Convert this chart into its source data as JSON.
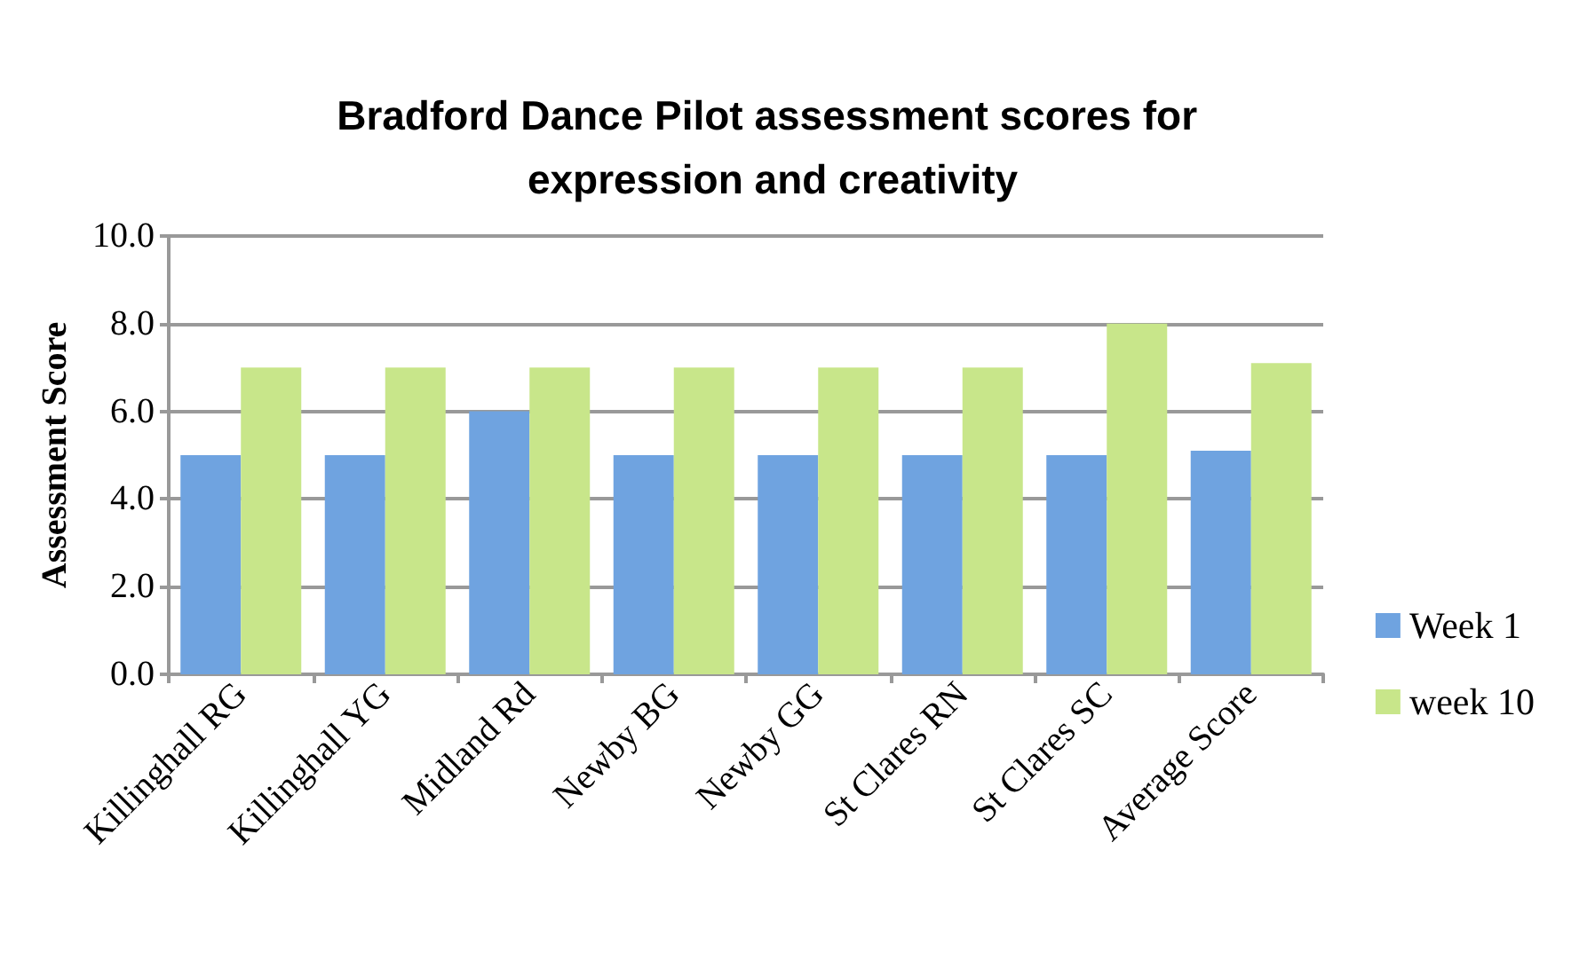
{
  "chart_data": {
    "type": "bar",
    "title": "Bradford Dance Pilot assessment scores for expression and creativity",
    "ylabel": "Assessment Score",
    "categories": [
      "Killinghall RG",
      "Killinghall YG",
      "Midland Rd",
      "Newby BG",
      "Newby GG",
      "St Clares RN",
      "St Clares SC",
      "Average Score"
    ],
    "series": [
      {
        "name": "Week 1",
        "color": "#6fa3e0",
        "values": [
          5,
          5,
          6,
          5,
          5,
          5,
          5,
          5.1
        ]
      },
      {
        "name": "week 10",
        "color": "#c8e68a",
        "values": [
          7,
          7,
          7,
          7,
          7,
          7,
          8,
          7.1
        ]
      }
    ],
    "ylim": [
      0,
      10
    ],
    "yticks": [
      {
        "value": 0,
        "label": "0.0"
      },
      {
        "value": 2,
        "label": "2.0"
      },
      {
        "value": 4,
        "label": "4.0"
      },
      {
        "value": 6,
        "label": "6.0"
      },
      {
        "value": 8,
        "label": "8.0"
      },
      {
        "value": 10,
        "label": "10.0"
      }
    ],
    "grid": "y",
    "legend": "right"
  }
}
